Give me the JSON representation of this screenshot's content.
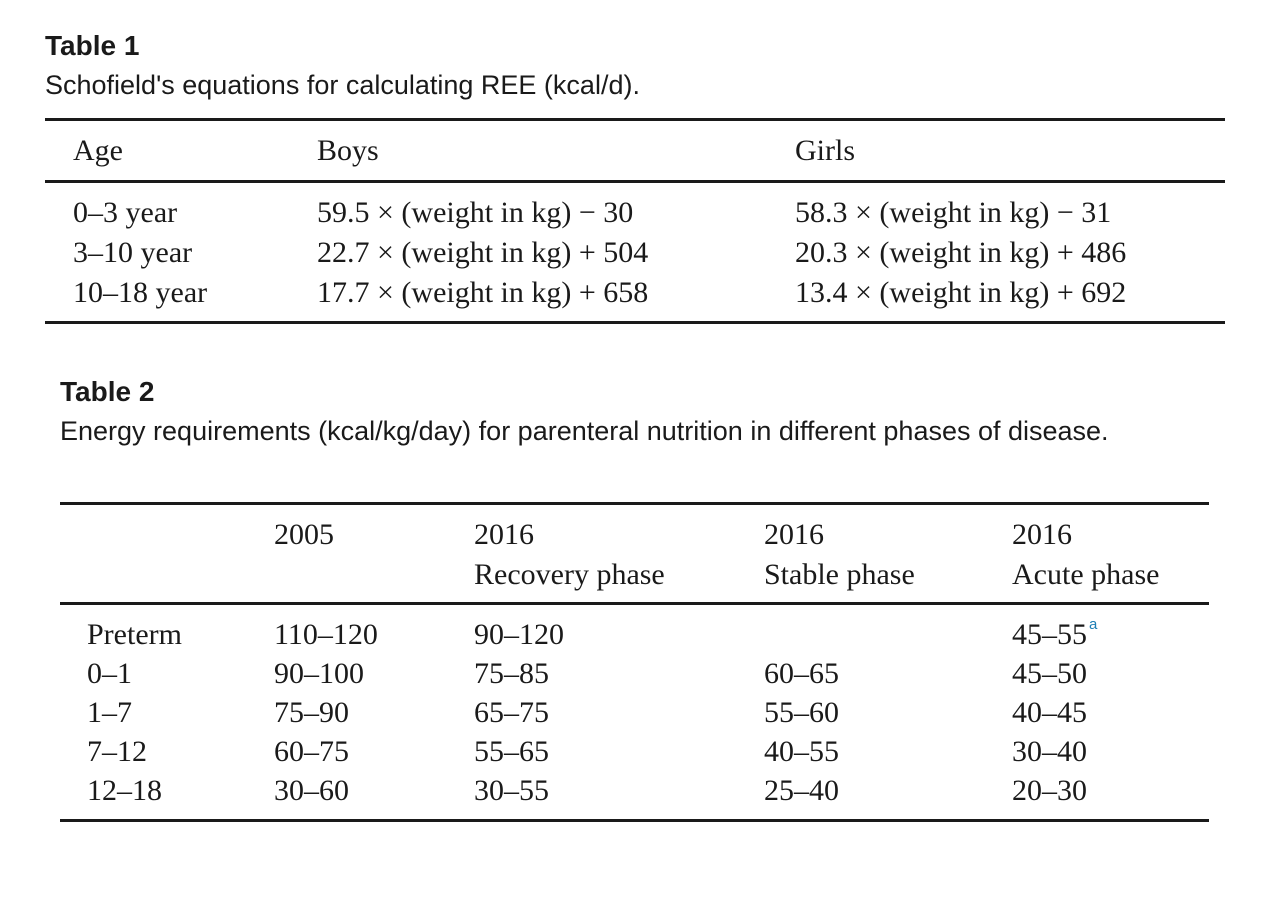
{
  "table1": {
    "label": "Table 1",
    "caption": "Schofield's equations for calculating REE (kcal/d).",
    "headers": [
      "Age",
      "Boys",
      "Girls"
    ],
    "rows": [
      [
        "0–3 year",
        "59.5 × (weight in kg) − 30",
        "58.3 × (weight in kg) − 31"
      ],
      [
        "3–10 year",
        "22.7 × (weight in kg) + 504",
        "20.3 × (weight in kg) + 486"
      ],
      [
        "10–18 year",
        "17.7 × (weight in kg) + 658",
        "13.4 × (weight in kg) + 692"
      ]
    ]
  },
  "table2": {
    "label": "Table 2",
    "caption": "Energy requirements (kcal/kg/day) for parenteral nutrition in different phases of disease.",
    "headers": [
      {
        "line1": "",
        "line2": ""
      },
      {
        "line1": "2005",
        "line2": ""
      },
      {
        "line1": "2016",
        "line2": "Recovery phase"
      },
      {
        "line1": "2016",
        "line2": "Stable phase"
      },
      {
        "line1": "2016",
        "line2": "Acute phase"
      }
    ],
    "rows": [
      [
        "Preterm",
        "110–120",
        "90–120",
        "",
        "45–55"
      ],
      [
        "0–1",
        "90–100",
        "75–85",
        "60–65",
        "45–50"
      ],
      [
        "1–7",
        "75–90",
        "65–75",
        "55–60",
        "40–45"
      ],
      [
        "7–12",
        "60–75",
        "55–65",
        "40–55",
        "30–40"
      ],
      [
        "12–18",
        "30–60",
        "30–55",
        "25–40",
        "20–30"
      ]
    ],
    "footnote_marker": "a"
  }
}
